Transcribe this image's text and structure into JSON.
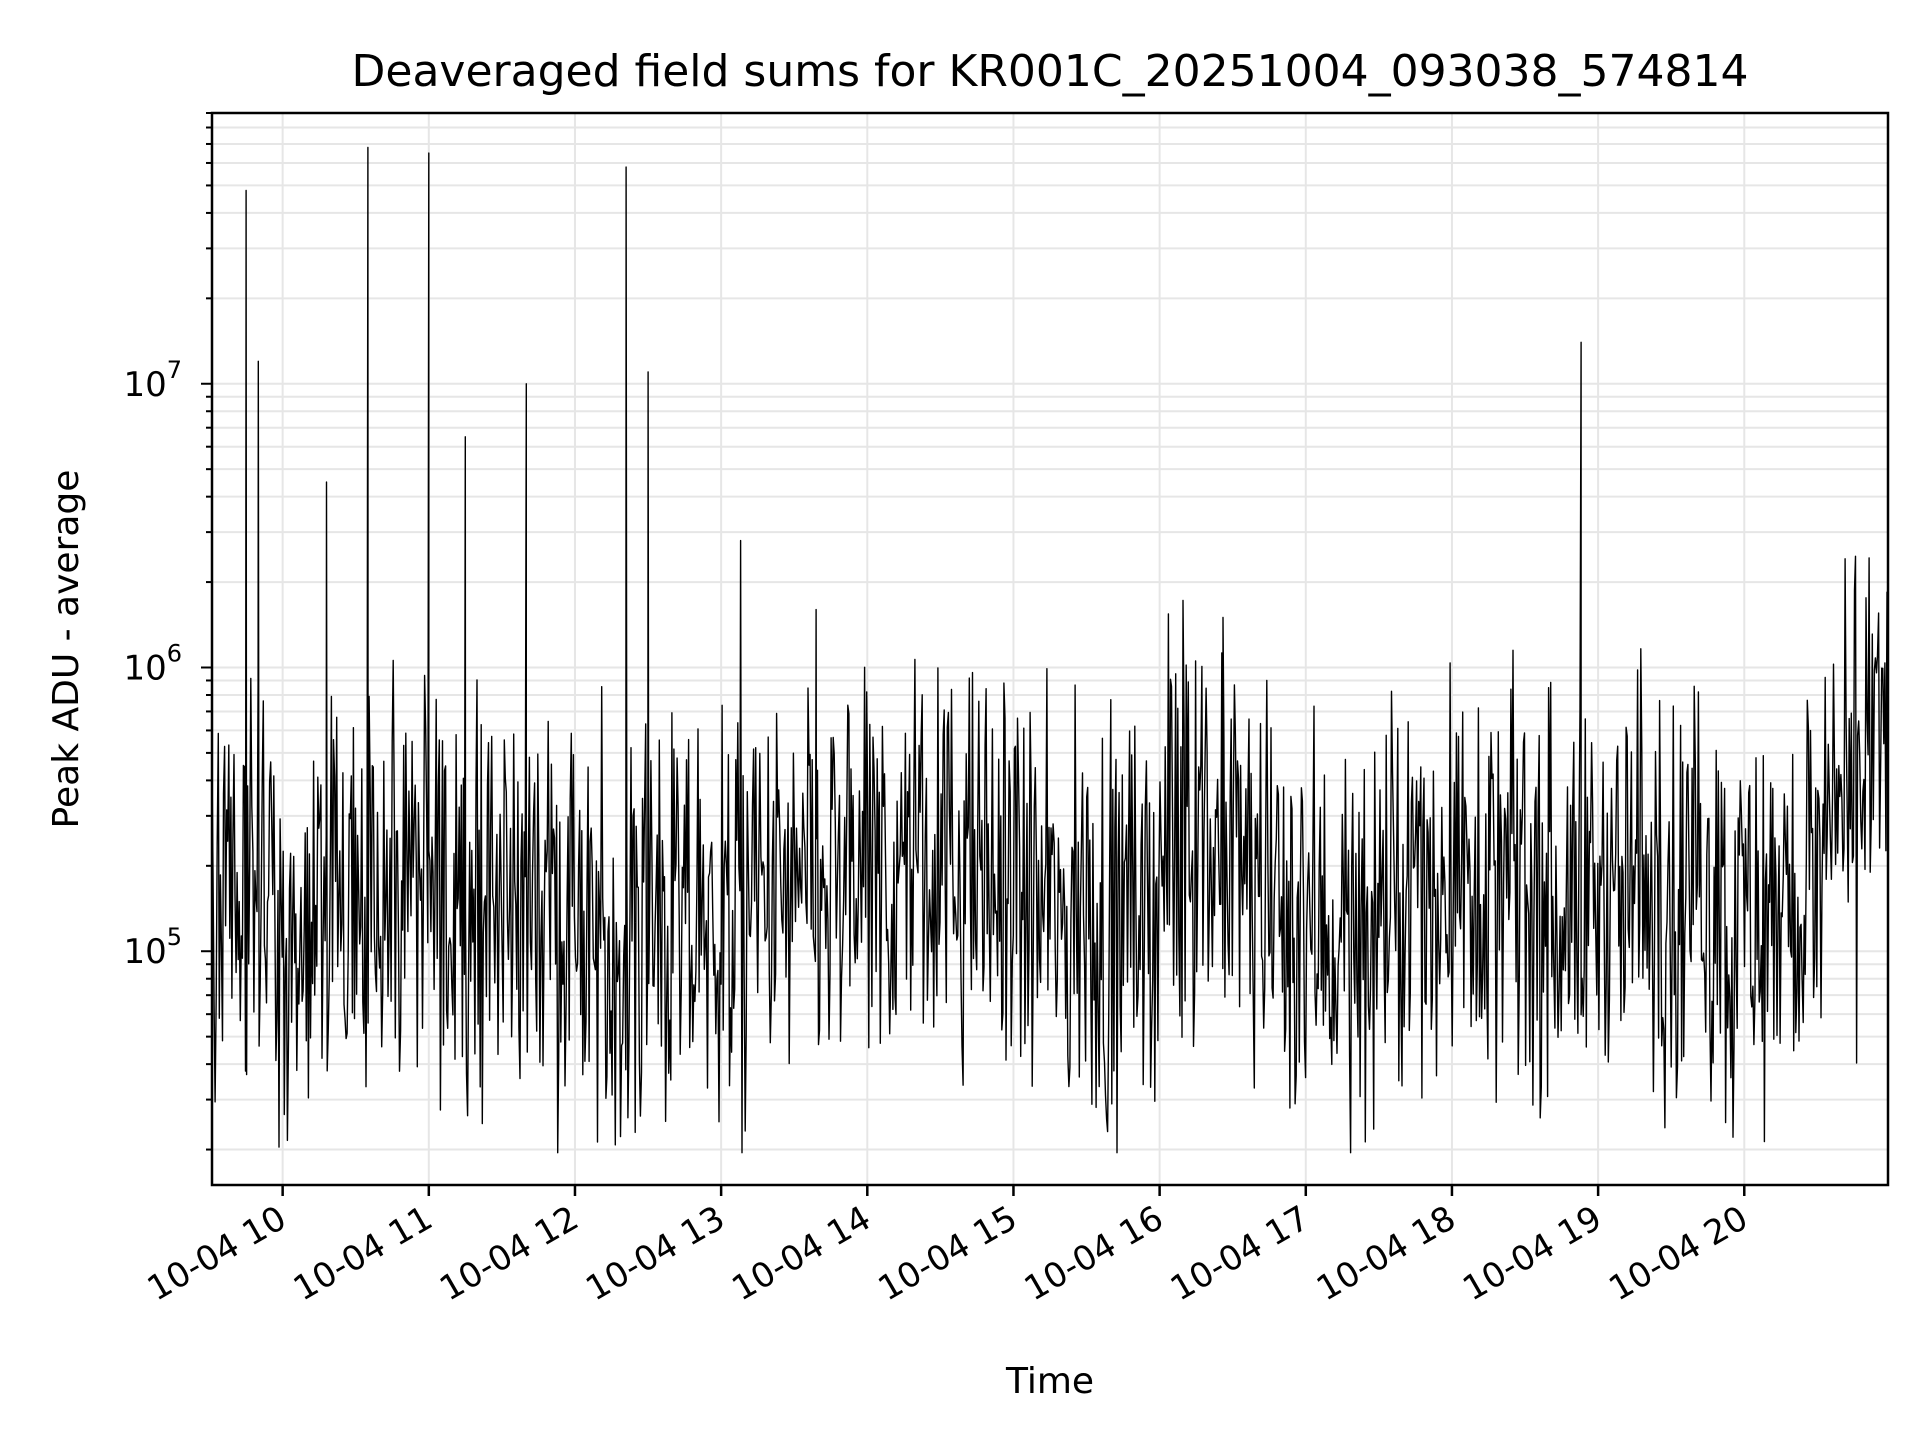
{
  "chart_data": {
    "type": "line",
    "title": "Deaveraged field sums for KR001C_20251004_093038_574814",
    "xlabel": "Time",
    "ylabel": "Peak ADU - average",
    "xlim": [
      "2025-10-04 09:31",
      "2025-10-04 20:59"
    ],
    "ylim": [
      15000,
      90000000
    ],
    "yscale": "log",
    "grid": true,
    "line_color": "#000000",
    "x_ticks": [
      {
        "label": "10-04 10",
        "value": "2025-10-04 10:00"
      },
      {
        "label": "10-04 11",
        "value": "2025-10-04 11:00"
      },
      {
        "label": "10-04 12",
        "value": "2025-10-04 12:00"
      },
      {
        "label": "10-04 13",
        "value": "2025-10-04 13:00"
      },
      {
        "label": "10-04 14",
        "value": "2025-10-04 14:00"
      },
      {
        "label": "10-04 15",
        "value": "2025-10-04 15:00"
      },
      {
        "label": "10-04 16",
        "value": "2025-10-04 16:00"
      },
      {
        "label": "10-04 17",
        "value": "2025-10-04 17:00"
      },
      {
        "label": "10-04 18",
        "value": "2025-10-04 18:00"
      },
      {
        "label": "10-04 19",
        "value": "2025-10-04 19:00"
      },
      {
        "label": "10-04 20",
        "value": "2025-10-04 20:00"
      }
    ],
    "y_ticks": [
      {
        "base": "10",
        "exp": "5",
        "value": 100000
      },
      {
        "base": "10",
        "exp": "6",
        "value": 1000000
      },
      {
        "base": "10",
        "exp": "7",
        "value": 10000000
      }
    ],
    "series": [
      {
        "x": [
          "2025-10-04 09:31",
          "2025-10-04 09:40",
          "2025-10-04 09:45",
          "2025-10-04 09:47",
          "2025-10-04 09:50",
          "2025-10-04 09:55",
          "2025-10-04 10:05",
          "2025-10-04 10:15",
          "2025-10-04 10:18",
          "2025-10-04 10:25",
          "2025-10-04 10:35",
          "2025-10-04 10:45",
          "2025-10-04 10:52",
          "2025-10-04 11:00",
          "2025-10-04 11:08",
          "2025-10-04 11:15",
          "2025-10-04 11:30",
          "2025-10-04 11:40",
          "2025-10-04 11:52",
          "2025-10-04 12:00",
          "2025-10-04 12:10",
          "2025-10-04 12:21",
          "2025-10-04 12:30",
          "2025-10-04 12:45",
          "2025-10-04 13:00",
          "2025-10-04 13:08",
          "2025-10-04 13:20",
          "2025-10-04 13:30",
          "2025-10-04 13:39",
          "2025-10-04 13:50",
          "2025-10-04 14:00",
          "2025-10-04 14:10",
          "2025-10-04 14:20",
          "2025-10-04 14:30",
          "2025-10-04 14:40",
          "2025-10-04 14:50",
          "2025-10-04 15:00",
          "2025-10-04 15:10",
          "2025-10-04 15:20",
          "2025-10-04 15:30",
          "2025-10-04 15:40",
          "2025-10-04 15:50",
          "2025-10-04 16:00",
          "2025-10-04 16:10",
          "2025-10-04 16:20",
          "2025-10-04 16:26",
          "2025-10-04 16:35",
          "2025-10-04 16:45",
          "2025-10-04 16:55",
          "2025-10-04 17:10",
          "2025-10-04 17:20",
          "2025-10-04 17:35",
          "2025-10-04 17:45",
          "2025-10-04 18:00",
          "2025-10-04 18:15",
          "2025-10-04 18:30",
          "2025-10-04 18:45",
          "2025-10-04 18:53",
          "2025-10-04 19:00",
          "2025-10-04 19:15",
          "2025-10-04 19:30",
          "2025-10-04 19:45",
          "2025-10-04 19:55",
          "2025-10-04 20:05",
          "2025-10-04 20:20",
          "2025-10-04 20:35",
          "2025-10-04 20:45",
          "2025-10-04 20:59"
        ],
        "values": [
          250000,
          140000,
          48000000,
          160000,
          12000000,
          150000,
          120000,
          130000,
          4500000,
          140000,
          68000000,
          180000,
          160000,
          65000000,
          160000,
          6500000,
          170000,
          10000000,
          150000,
          110000,
          120000,
          58000000,
          11000000,
          110000,
          130000,
          2800000,
          150000,
          150000,
          1600000,
          160000,
          170000,
          180000,
          200000,
          190000,
          200000,
          170000,
          150000,
          140000,
          130000,
          120000,
          110000,
          130000,
          180000,
          200000,
          250000,
          1500000,
          200000,
          150000,
          130000,
          120000,
          110000,
          120000,
          170000,
          210000,
          170000,
          160000,
          140000,
          14000000,
          170000,
          180000,
          160000,
          150000,
          120000,
          140000,
          140000,
          200000,
          350000,
          620000
        ]
      }
    ]
  }
}
